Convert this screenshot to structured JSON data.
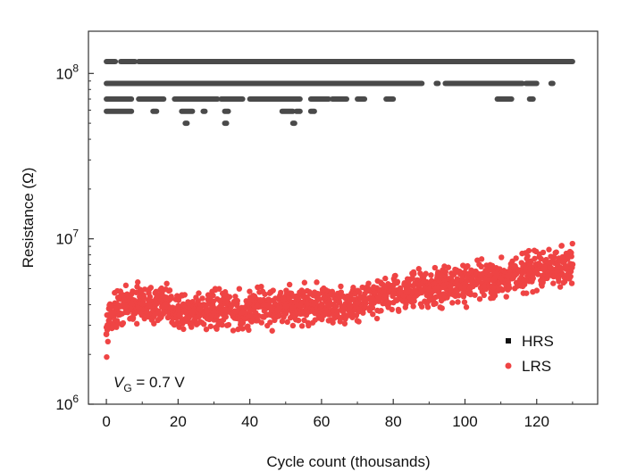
{
  "chart_data": {
    "type": "scatter",
    "xlabel": "Cycle count (thousands)",
    "ylabel": "Resistance (Ω)",
    "xlim": [
      -5,
      137
    ],
    "ylim": [
      1000000,
      180000000
    ],
    "yscale": "log",
    "x_ticks": [
      0,
      20,
      40,
      60,
      80,
      100,
      120
    ],
    "y_ticks": [
      {
        "value": 1000000,
        "base": "10",
        "exp": "6"
      },
      {
        "value": 10000000,
        "base": "10",
        "exp": "7"
      },
      {
        "value": 100000000,
        "base": "10",
        "exp": "8"
      }
    ],
    "grid": false,
    "legend_position": "bottom-right",
    "annotation": {
      "var": "V",
      "sub": "G",
      "rest": " = 0.7 V"
    },
    "series": [
      {
        "name": "HRS",
        "color": "#4a4a4a",
        "levels": [
          {
            "y": 118000000,
            "segments": [
              [
                0,
                2.5
              ],
              [
                4,
                8
              ],
              [
                9,
                13
              ],
              [
                13,
                23
              ],
              [
                23,
                130
              ]
            ]
          },
          {
            "y": 87000000,
            "segments": [
              [
                0,
                88
              ],
              [
                92,
                92.5
              ],
              [
                94.5,
                95
              ],
              [
                95,
                116
              ],
              [
                117,
                120
              ],
              [
                124,
                124.5
              ]
            ]
          },
          {
            "y": 70000000,
            "segments": [
              [
                0,
                7
              ],
              [
                9,
                16
              ],
              [
                19,
                31
              ],
              [
                32,
                38
              ],
              [
                40,
                46
              ],
              [
                46,
                54
              ],
              [
                57,
                62
              ],
              [
                63,
                67
              ],
              [
                70,
                72
              ],
              [
                78,
                80
              ],
              [
                109,
                113
              ],
              [
                118,
                119
              ]
            ]
          },
          {
            "y": 59000000,
            "segments": [
              [
                0,
                7
              ],
              [
                13,
                14
              ],
              [
                21,
                24
              ],
              [
                27,
                27.5
              ],
              [
                33,
                34
              ],
              [
                49,
                52
              ],
              [
                53,
                54
              ],
              [
                57,
                58
              ]
            ]
          },
          {
            "y": 50000000,
            "segments": [
              [
                22,
                22.5
              ],
              [
                33,
                33.5
              ],
              [
                52,
                52.5
              ]
            ]
          }
        ]
      },
      {
        "name": "LRS",
        "color": "#ef4444",
        "points": [
          [
            0,
            2650000
          ],
          [
            0.3,
            3000000
          ],
          [
            0.7,
            3200000
          ],
          [
            1,
            3400000
          ],
          [
            2,
            3600000
          ],
          [
            3,
            3800000
          ],
          [
            4,
            3900000
          ],
          [
            5,
            4000000
          ],
          [
            7,
            4050000
          ],
          [
            10,
            4050000
          ],
          [
            12,
            3950000
          ],
          [
            14,
            4050000
          ],
          [
            16,
            3900000
          ],
          [
            18,
            3800000
          ],
          [
            20,
            3750000
          ],
          [
            22,
            3600000
          ],
          [
            24,
            3650000
          ],
          [
            26,
            3750000
          ],
          [
            28,
            3650000
          ],
          [
            30,
            3600000
          ],
          [
            32,
            3650000
          ],
          [
            34,
            3700000
          ],
          [
            36,
            3650000
          ],
          [
            38,
            3600000
          ],
          [
            40,
            3700000
          ],
          [
            42,
            3900000
          ],
          [
            44,
            4000000
          ],
          [
            46,
            3800000
          ],
          [
            48,
            3750000
          ],
          [
            50,
            3900000
          ],
          [
            52,
            3850000
          ],
          [
            54,
            4000000
          ],
          [
            56,
            4050000
          ],
          [
            58,
            4100000
          ],
          [
            60,
            4000000
          ],
          [
            62,
            3950000
          ],
          [
            64,
            3900000
          ],
          [
            66,
            3850000
          ],
          [
            68,
            3950000
          ],
          [
            70,
            4100000
          ],
          [
            72,
            4250000
          ],
          [
            74,
            4400000
          ],
          [
            76,
            4450000
          ],
          [
            78,
            4500000
          ],
          [
            80,
            4650000
          ],
          [
            82,
            4750000
          ],
          [
            84,
            4800000
          ],
          [
            86,
            4850000
          ],
          [
            88,
            4900000
          ],
          [
            90,
            4950000
          ],
          [
            92,
            5000000
          ],
          [
            94,
            5100000
          ],
          [
            96,
            5200000
          ],
          [
            98,
            5250000
          ],
          [
            100,
            5350000
          ],
          [
            102,
            5450000
          ],
          [
            104,
            5550000
          ],
          [
            106,
            5650000
          ],
          [
            108,
            5700000
          ],
          [
            110,
            5800000
          ],
          [
            112,
            5950000
          ],
          [
            114,
            6050000
          ],
          [
            116,
            6200000
          ],
          [
            118,
            6350000
          ],
          [
            120,
            6450000
          ],
          [
            122,
            6550000
          ],
          [
            124,
            6650000
          ],
          [
            126,
            6750000
          ],
          [
            128,
            6850000
          ],
          [
            130,
            7000000
          ]
        ]
      }
    ]
  }
}
